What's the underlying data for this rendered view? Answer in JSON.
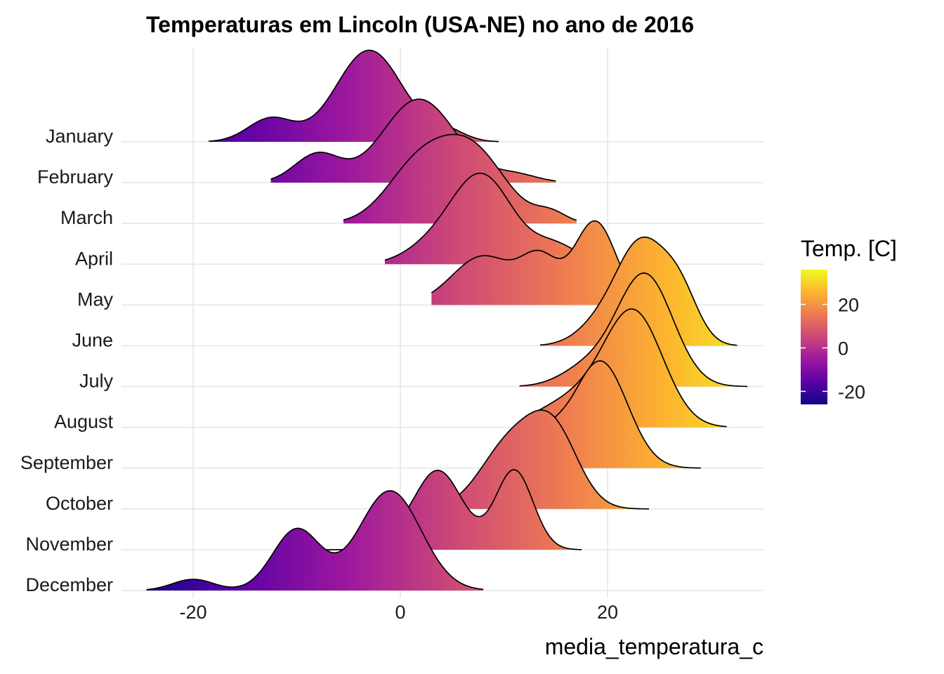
{
  "chart_data": {
    "type": "ridgeline",
    "title": "Temperaturas em Lincoln (USA-NE) no ano de 2016",
    "xlabel": "media_temperatura_c",
    "ylabel": "",
    "xlim": [
      -27,
      35
    ],
    "xticks": [
      "-20",
      "0",
      "20"
    ],
    "xtick_values": [
      -20,
      0,
      20
    ],
    "grid": true,
    "categories": [
      "January",
      "February",
      "March",
      "April",
      "May",
      "June",
      "July",
      "August",
      "September",
      "October",
      "November",
      "December"
    ],
    "series": [
      {
        "peaks": [
          {
            "mu": -12.5,
            "sd": 2.2,
            "h": 0.23
          },
          {
            "mu": -3,
            "sd": 3.2,
            "h": 0.9
          },
          {
            "mu": 4.5,
            "sd": 1.8,
            "h": 0.1
          }
        ],
        "min": -18.5,
        "max": 9.5
      },
      {
        "peaks": [
          {
            "mu": -8,
            "sd": 2.2,
            "h": 0.28
          },
          {
            "mu": 1.8,
            "sd": 3.5,
            "h": 0.82
          },
          {
            "mu": 11,
            "sd": 2.2,
            "h": 0.08
          }
        ],
        "min": -12.5,
        "max": 15
      },
      {
        "peaks": [
          {
            "mu": 1.5,
            "sd": 3,
            "h": 0.5
          },
          {
            "mu": 6.8,
            "sd": 3.3,
            "h": 0.72
          },
          {
            "mu": 14.5,
            "sd": 1.5,
            "h": 0.1
          }
        ],
        "min": -5.5,
        "max": 17
      },
      {
        "peaks": [
          {
            "mu": 2.5,
            "sd": 2.5,
            "h": 0.12
          },
          {
            "mu": 7.8,
            "sd": 3,
            "h": 0.88
          },
          {
            "mu": 15,
            "sd": 2.2,
            "h": 0.18
          }
        ],
        "min": -1.5,
        "max": 18
      },
      {
        "peaks": [
          {
            "mu": 8,
            "sd": 3,
            "h": 0.48
          },
          {
            "mu": 13.5,
            "sd": 1.8,
            "h": 0.42
          },
          {
            "mu": 18.8,
            "sd": 2,
            "h": 0.82
          }
        ],
        "min": 3,
        "max": 22
      },
      {
        "peaks": [
          {
            "mu": 19.5,
            "sd": 2.3,
            "h": 0.22
          },
          {
            "mu": 23.3,
            "sd": 2.3,
            "h": 0.95
          },
          {
            "mu": 27,
            "sd": 1.8,
            "h": 0.48
          }
        ],
        "min": 13.5,
        "max": 32.5
      },
      {
        "peaks": [
          {
            "mu": 18,
            "sd": 2.5,
            "h": 0.18
          },
          {
            "mu": 23.6,
            "sd": 2.7,
            "h": 1.1
          }
        ],
        "min": 11.5,
        "max": 33.5
      },
      {
        "peaks": [
          {
            "mu": 17,
            "sd": 3.5,
            "h": 0.28
          },
          {
            "mu": 22.6,
            "sd": 2.8,
            "h": 1.08
          }
        ],
        "min": 13,
        "max": 31.5
      },
      {
        "peaks": [
          {
            "mu": 14,
            "sd": 1.8,
            "h": 0.28
          },
          {
            "mu": 19.3,
            "sd": 2.6,
            "h": 1.05
          }
        ],
        "min": 10,
        "max": 29
      },
      {
        "peaks": [
          {
            "mu": 10.5,
            "sd": 2.8,
            "h": 0.62
          },
          {
            "mu": 14.8,
            "sd": 2.4,
            "h": 0.72
          }
        ],
        "min": 3,
        "max": 24
      },
      {
        "peaks": [
          {
            "mu": -1,
            "sd": 1.2,
            "h": 0.08
          },
          {
            "mu": 3.6,
            "sd": 2.4,
            "h": 0.78
          },
          {
            "mu": 11,
            "sd": 1.8,
            "h": 0.78
          }
        ],
        "min": -7.5,
        "max": 17.5
      },
      {
        "peaks": [
          {
            "mu": -20,
            "sd": 2,
            "h": 0.11
          },
          {
            "mu": -10,
            "sd": 2.3,
            "h": 0.6
          },
          {
            "mu": -1,
            "sd": 3,
            "h": 0.98
          }
        ],
        "min": -24.5,
        "max": 8
      }
    ]
  },
  "legend": {
    "title": "Temp. [C]",
    "ticks": [
      "20",
      "0",
      "-20"
    ],
    "tick_values": [
      20,
      0,
      -20
    ],
    "range": [
      -26,
      36
    ],
    "colors": [
      "#0d0887",
      "#5c01a6",
      "#9c179e",
      "#cc4778",
      "#ed7953",
      "#fdb42f",
      "#f0f921"
    ]
  },
  "colors": {
    "grid": "#e6e6e6",
    "outline": "#000000"
  }
}
